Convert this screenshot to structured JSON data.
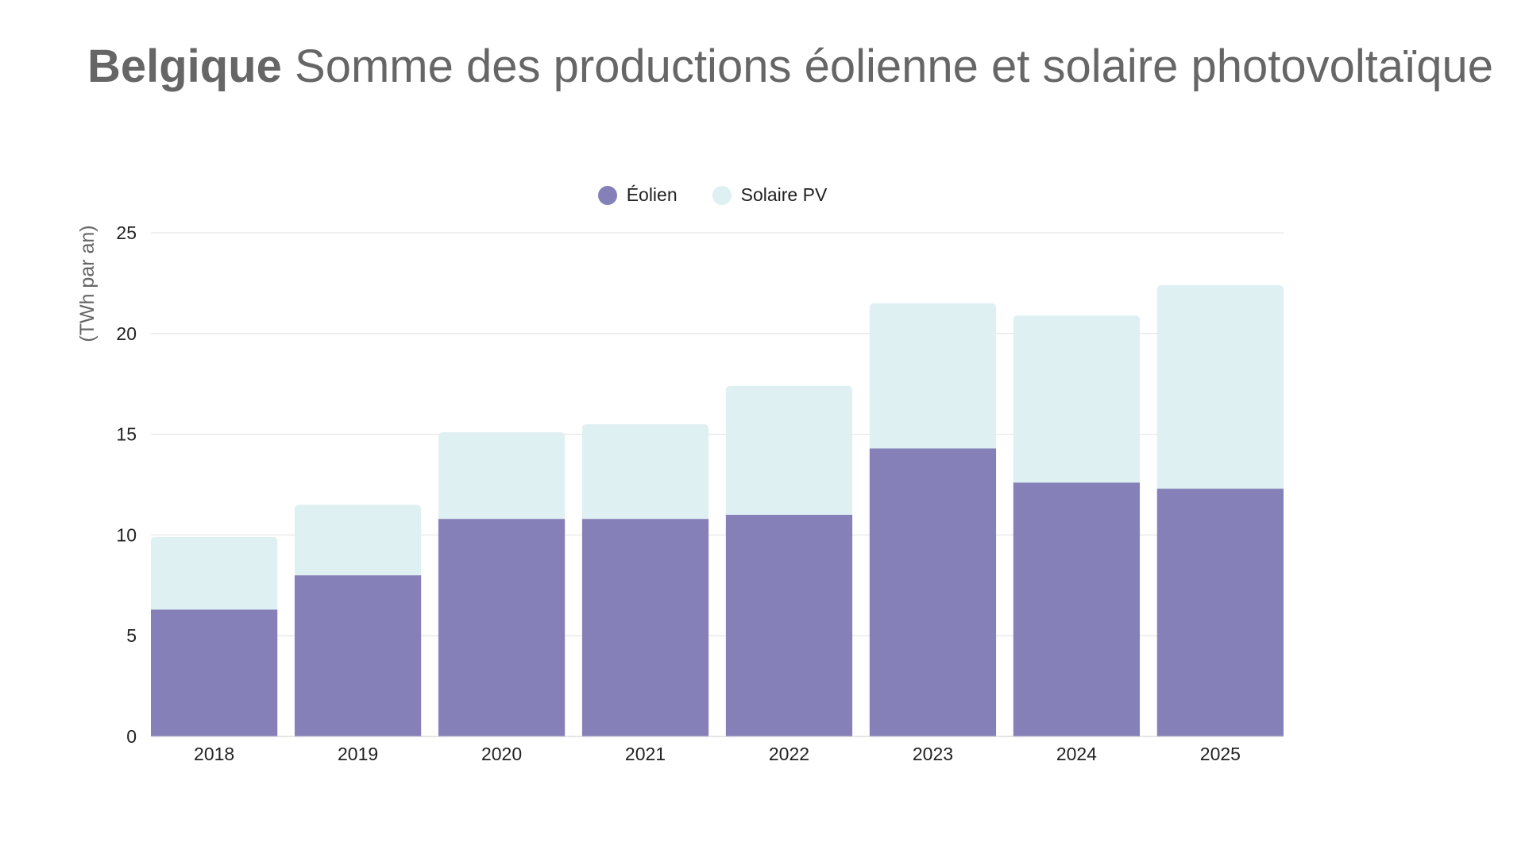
{
  "title": {
    "bold": "Belgique",
    "rest": "Somme des productions éolienne et solaire photovoltaïque"
  },
  "colors": {
    "wind": "#8680b8",
    "solar": "#dff0f2",
    "grid": "#e0e0e0",
    "text": "#666666"
  },
  "chart_data": {
    "type": "bar",
    "stacked": true,
    "categories": [
      "2018",
      "2019",
      "2020",
      "2021",
      "2022",
      "2023",
      "2024",
      "2025"
    ],
    "series": [
      {
        "name": "Éolien",
        "values": [
          6.3,
          8.0,
          10.8,
          10.8,
          11.0,
          14.3,
          12.6,
          12.3
        ]
      },
      {
        "name": "Solaire PV",
        "values": [
          3.6,
          3.5,
          4.3,
          4.7,
          6.4,
          7.2,
          8.3,
          10.1
        ]
      }
    ],
    "xlabel": "",
    "ylabel": "(TWh par an)",
    "ylim": [
      0,
      25
    ],
    "yticks": [
      "0",
      "5",
      "10",
      "15",
      "20",
      "25"
    ],
    "grid": true,
    "legend": "top"
  }
}
